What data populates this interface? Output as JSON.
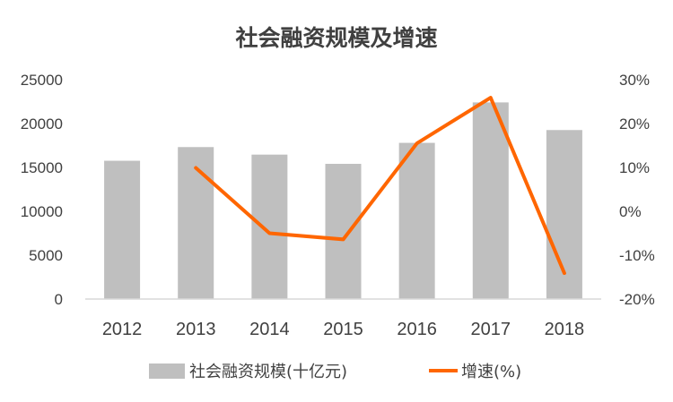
{
  "chart_data": {
    "type": "bar",
    "title": "社会融资规模及增速",
    "categories": [
      "2012",
      "2013",
      "2014",
      "2015",
      "2016",
      "2017",
      "2018"
    ],
    "series": [
      {
        "name": "社会融资规模(十亿元)",
        "type": "bar",
        "axis": "left",
        "color": "#bfbfbf",
        "values": [
          15760,
          17320,
          16460,
          15410,
          17800,
          22410,
          19260
        ]
      },
      {
        "name": "增速(%)",
        "type": "line",
        "axis": "right",
        "color": "#ff6600",
        "values": [
          null,
          9.9,
          -5.0,
          -6.4,
          15.5,
          25.9,
          -14.1
        ]
      }
    ],
    "y_left": {
      "min": 0,
      "max": 25000,
      "ticks": [
        "0",
        "5000",
        "10000",
        "15000",
        "20000",
        "25000"
      ]
    },
    "y_right": {
      "min": -20,
      "max": 30,
      "ticks": [
        "-20%",
        "-10%",
        "0%",
        "10%",
        "20%",
        "30%"
      ]
    },
    "grid": false,
    "legend_position": "bottom"
  }
}
